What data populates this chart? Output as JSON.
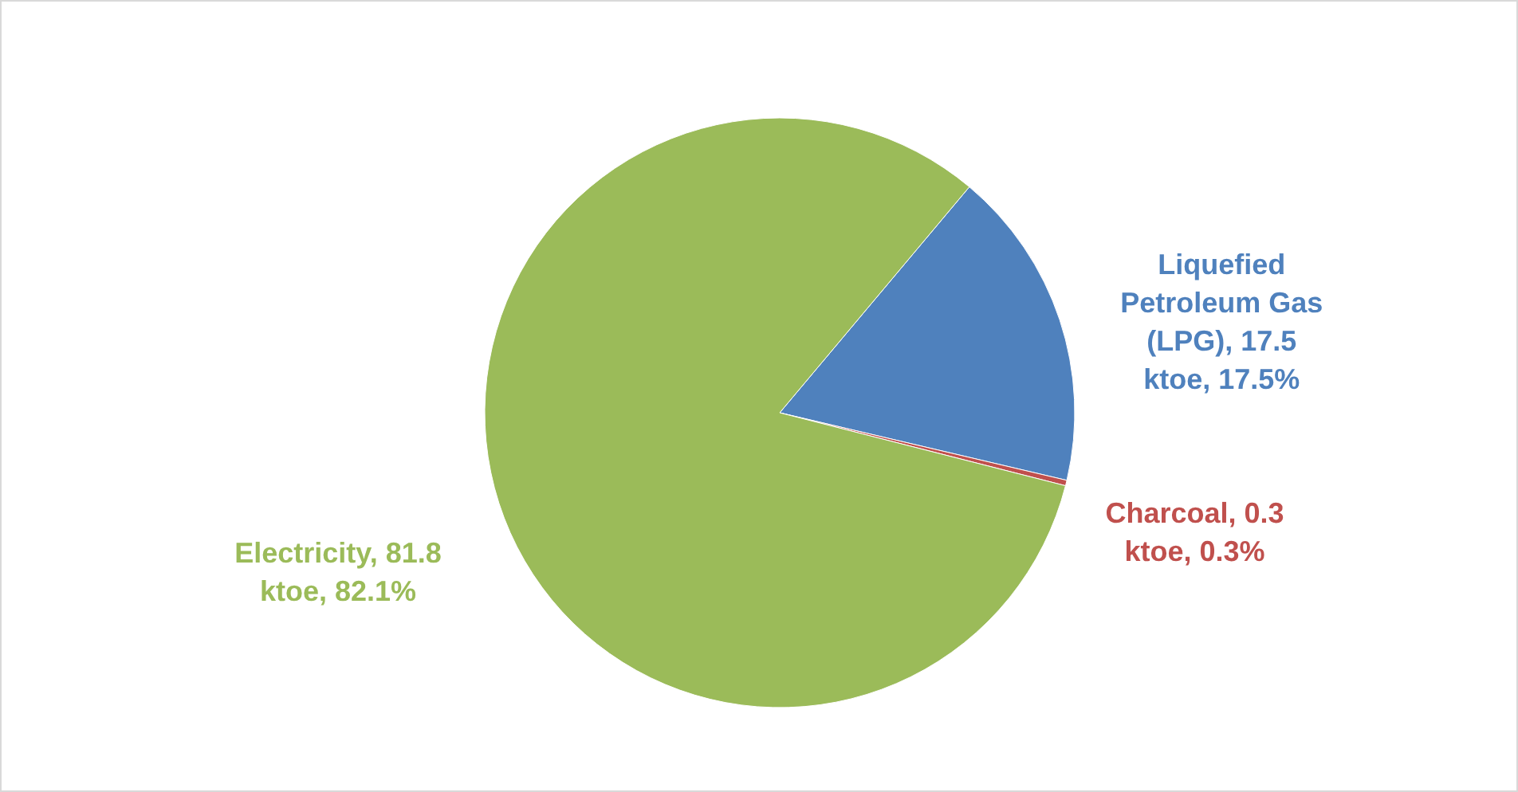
{
  "chart_data": {
    "type": "pie",
    "categories": [
      "Liquefied Petroleum Gas (LPG)",
      "Charcoal",
      "Electricity"
    ],
    "values": [
      17.5,
      0.3,
      81.8
    ],
    "colors": [
      "#4f81bd",
      "#c0504d",
      "#9bbb59"
    ],
    "value_labels": [
      "17.5 ktoe, 17.5%",
      "0.3 ktoe, 0.3%",
      "81.8 ktoe, 82.1%"
    ],
    "legend": false
  }
}
